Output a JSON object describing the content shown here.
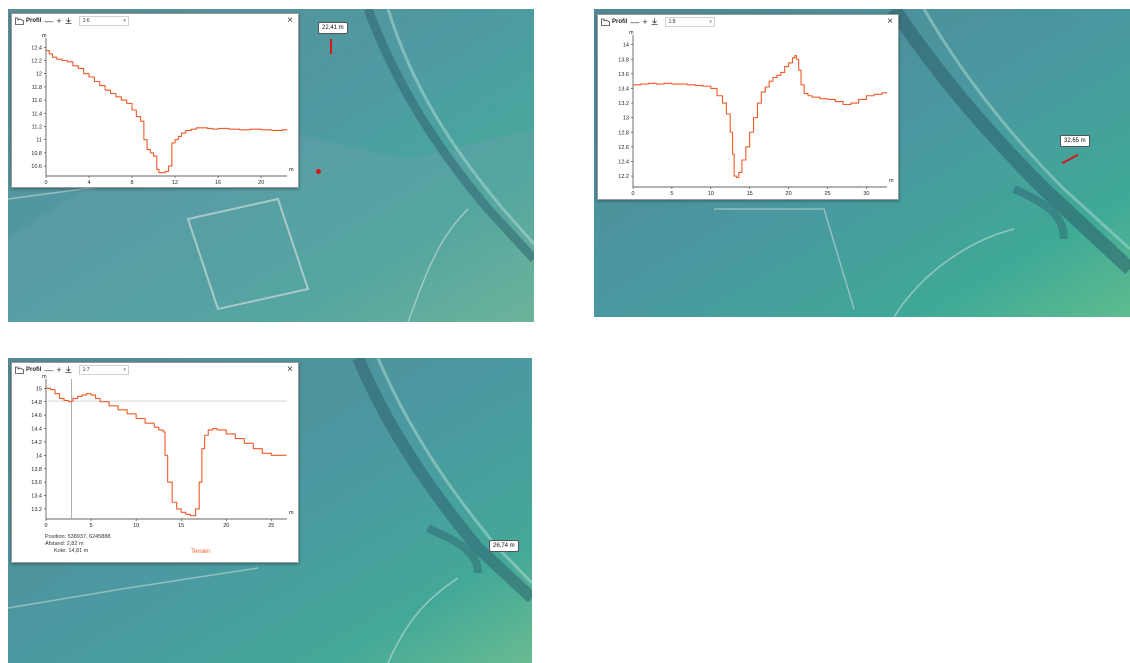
{
  "colors": {
    "profile_line": "#f05a28",
    "marker": "#d11a1a",
    "window_bg": "#ffffff"
  },
  "icons": {
    "window": "profile-window-icon",
    "minus": "minus-icon",
    "plus": "plus-icon",
    "download": "download-icon",
    "close": "close-icon",
    "dropdown": "chevron-down-icon"
  },
  "windows": [
    {
      "title": "Profil",
      "minus": "—",
      "plus": "+",
      "scale": "1:6",
      "close": "×",
      "map_label": "22,41 m",
      "chart_data": {
        "type": "line",
        "ylabel": "m",
        "xlabel": "m",
        "xlim": [
          0,
          22.41
        ],
        "ylim": [
          10.45,
          12.45
        ],
        "x_ticks": [
          "0",
          "4",
          "8",
          "12",
          "16",
          "20"
        ],
        "y_ticks": [
          "12.4",
          "12.2",
          "12",
          "11.8",
          "11.6",
          "11.4",
          "11.2",
          "11",
          "10.8",
          "10.6"
        ],
        "series": [
          {
            "x": [
              0,
              0.3,
              0.6,
              1,
              1.5,
              2,
              2.5,
              3,
              3.5,
              4,
              4.5,
              5,
              5.5,
              6,
              6.5,
              7,
              7.5,
              8,
              8.4,
              8.8,
              9.1,
              9.4,
              9.7,
              10,
              10.3,
              10.5,
              10.8,
              11.1,
              11.4,
              11.7,
              12,
              12.3,
              12.6,
              13,
              13.5,
              14,
              14.5,
              15,
              15.5,
              16,
              17,
              18,
              19,
              20,
              21,
              22,
              22.4
            ],
            "y": [
              12.35,
              12.3,
              12.25,
              12.22,
              12.2,
              12.18,
              12.12,
              12.08,
              12.0,
              11.95,
              11.88,
              11.82,
              11.75,
              11.7,
              11.65,
              11.6,
              11.55,
              11.45,
              11.35,
              11.28,
              11.0,
              10.85,
              10.8,
              10.75,
              10.55,
              10.5,
              10.5,
              10.52,
              10.6,
              10.95,
              11.0,
              11.05,
              11.1,
              11.14,
              11.16,
              11.18,
              11.18,
              11.17,
              11.16,
              11.17,
              11.16,
              11.15,
              11.16,
              11.15,
              11.14,
              11.15,
              11.14
            ]
          }
        ]
      }
    },
    {
      "title": "Profil",
      "minus": "—",
      "plus": "+",
      "scale": "1:8",
      "close": "×",
      "map_label": "32,65 m",
      "chart_data": {
        "type": "line",
        "ylabel": "m",
        "xlabel": "m",
        "xlim": [
          0,
          32.65
        ],
        "ylim": [
          12.05,
          14.05
        ],
        "x_ticks": [
          "0",
          "5",
          "10",
          "15",
          "20",
          "25",
          "30"
        ],
        "y_ticks": [
          "14",
          "13.8",
          "13.6",
          "13.4",
          "13.2",
          "13",
          "12.8",
          "12.6",
          "12.4",
          "12.2"
        ],
        "series": [
          {
            "x": [
              0,
              1,
              2,
              3,
              4,
              5,
              6,
              7,
              8,
              9,
              10,
              10.8,
              11.5,
              12,
              12.5,
              12.8,
              13,
              13.3,
              13.6,
              14,
              14.5,
              15,
              15.5,
              16,
              16.5,
              17,
              17.5,
              18,
              18.5,
              19,
              19.5,
              20,
              20.5,
              20.8,
              21,
              21.3,
              21.6,
              22,
              22.5,
              23,
              24,
              25,
              26,
              27,
              28,
              29,
              30,
              31,
              32,
              32.6
            ],
            "y": [
              13.45,
              13.46,
              13.47,
              13.46,
              13.47,
              13.46,
              13.46,
              13.45,
              13.44,
              13.43,
              13.4,
              13.3,
              13.2,
              13.05,
              12.8,
              12.5,
              12.2,
              12.18,
              12.25,
              12.42,
              12.6,
              12.8,
              13.0,
              13.2,
              13.35,
              13.42,
              13.5,
              13.55,
              13.58,
              13.62,
              13.7,
              13.75,
              13.82,
              13.85,
              13.8,
              13.65,
              13.45,
              13.33,
              13.3,
              13.28,
              13.26,
              13.25,
              13.22,
              13.18,
              13.2,
              13.25,
              13.3,
              13.32,
              13.34,
              13.33
            ]
          }
        ]
      }
    },
    {
      "title": "Profil",
      "minus": "—",
      "plus": "+",
      "scale": "1:7",
      "close": "×",
      "map_label": "26,74 m",
      "info": {
        "position": "Position: 538937, 6245888",
        "distance": "Afstand: 2,82 m",
        "elevation": "Kote: 14,81 m",
        "series_label": "Terræn"
      },
      "hover_x": 2.82,
      "hover_y": 14.81,
      "chart_data": {
        "type": "line",
        "ylabel": "m",
        "xlabel": "m",
        "xlim": [
          0,
          26.74
        ],
        "ylim": [
          13.05,
          15.05
        ],
        "x_ticks": [
          "0",
          "5",
          "10",
          "15",
          "20",
          "25"
        ],
        "y_ticks": [
          "15",
          "14.8",
          "14.6",
          "14.4",
          "14.2",
          "14",
          "13.8",
          "13.6",
          "13.4",
          "13.2"
        ],
        "series": [
          {
            "x": [
              0,
              0.5,
              1,
              1.5,
              2,
              2.5,
              2.82,
              3,
              3.5,
              4,
              4.5,
              5,
              5.5,
              6,
              7,
              8,
              9,
              10,
              11,
              12,
              12.5,
              13,
              13.2,
              13.5,
              14,
              14.5,
              15,
              15.5,
              16,
              16.3,
              16.6,
              17,
              17.3,
              17.6,
              18,
              18.5,
              19,
              20,
              21,
              22,
              23,
              24,
              25,
              26,
              26.7
            ],
            "y": [
              15.0,
              14.98,
              14.92,
              14.85,
              14.82,
              14.8,
              14.81,
              14.85,
              14.88,
              14.9,
              14.92,
              14.9,
              14.85,
              14.8,
              14.74,
              14.68,
              14.62,
              14.55,
              14.48,
              14.42,
              14.38,
              14.35,
              14.0,
              13.6,
              13.3,
              13.2,
              13.15,
              13.12,
              13.1,
              13.1,
              13.2,
              13.6,
              14.1,
              14.3,
              14.38,
              14.4,
              14.38,
              14.32,
              14.25,
              14.18,
              14.1,
              14.03,
              14.0,
              14.0,
              14.0
            ]
          }
        ]
      }
    }
  ]
}
